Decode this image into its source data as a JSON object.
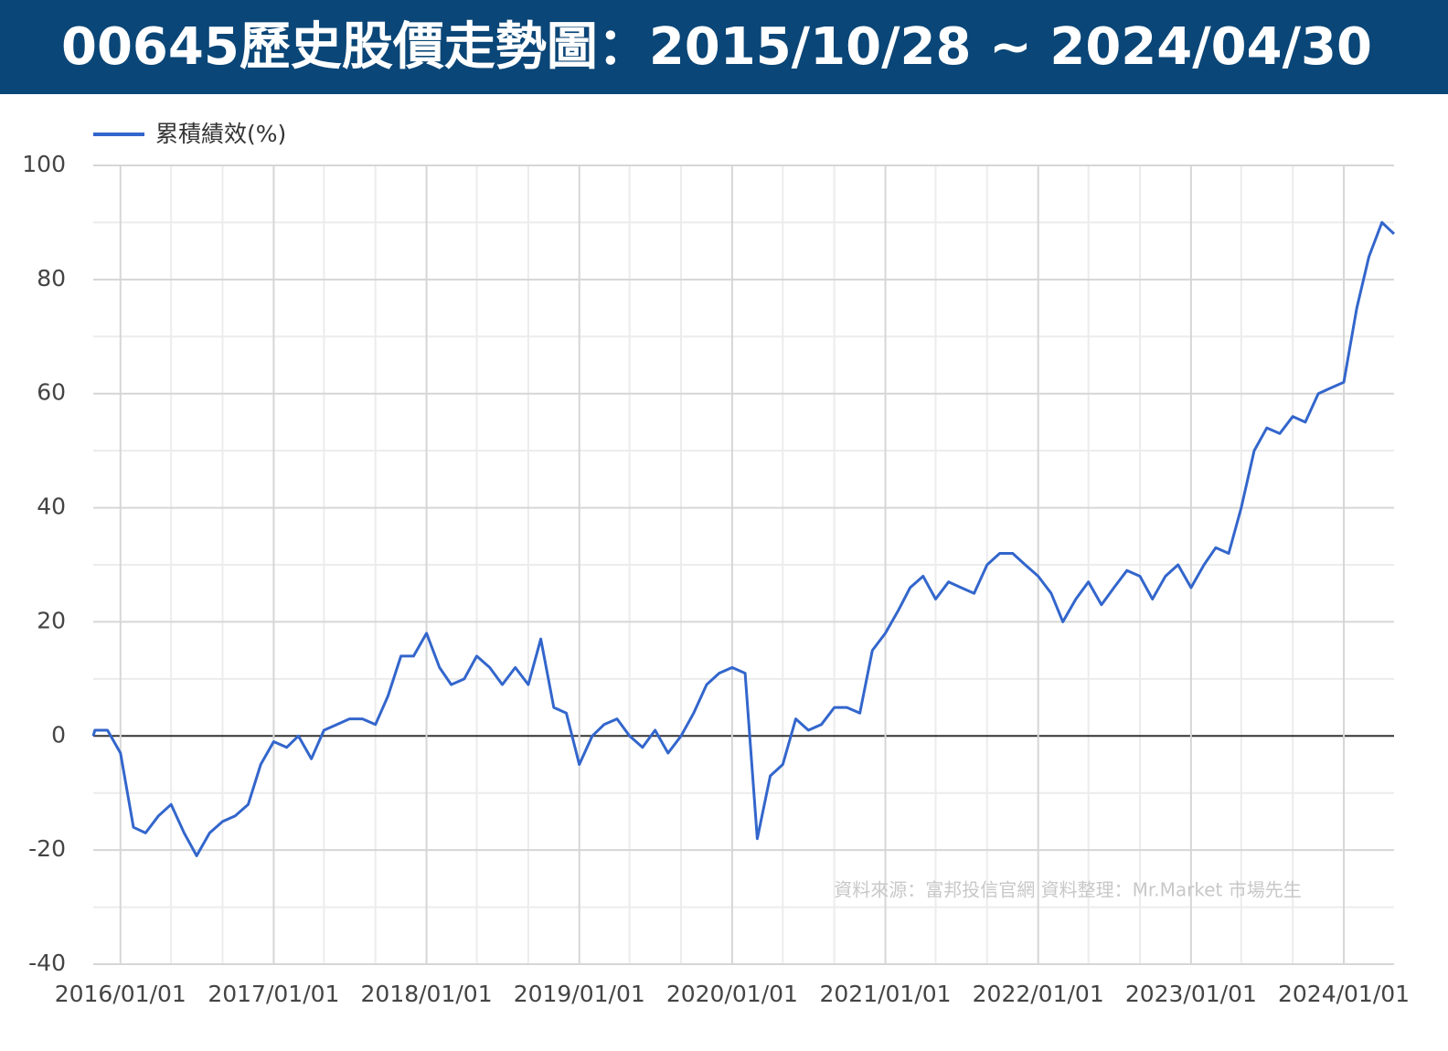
{
  "chart_data": {
    "type": "line",
    "title": "00645歷史股價走勢圖：2015/10/28 ~ 2024/04/30",
    "annotation": "資料來源：富邦投信官網  資料整理：Mr.Market 市場先生",
    "xlim": [
      "2015/10/28",
      "2024/04/30"
    ],
    "xticks": [
      "2016/01/01",
      "2017/01/01",
      "2018/01/01",
      "2019/01/01",
      "2020/01/01",
      "2021/01/01",
      "2022/01/01",
      "2023/01/01",
      "2024/01/01"
    ],
    "minor_xticks": [
      "2016/05/01",
      "2016/09/01",
      "2017/05/01",
      "2017/09/01",
      "2018/05/01",
      "2018/09/01",
      "2019/05/01",
      "2019/09/01",
      "2020/05/01",
      "2020/09/01",
      "2021/05/01",
      "2021/09/01",
      "2022/05/01",
      "2022/09/01",
      "2023/05/01",
      "2023/09/01"
    ],
    "ylim": [
      -40,
      100
    ],
    "yticks": [
      -40,
      -20,
      0,
      20,
      40,
      60,
      80,
      100
    ],
    "minor_yticks": [
      -30,
      -10,
      10,
      30,
      50,
      70,
      90
    ],
    "grid": true,
    "legend": "top-left",
    "x": [
      "2015/10/28",
      "2015/11/01",
      "2015/12/01",
      "2016/01/01",
      "2016/02/01",
      "2016/03/01",
      "2016/04/01",
      "2016/05/01",
      "2016/06/01",
      "2016/07/01",
      "2016/08/01",
      "2016/09/01",
      "2016/10/01",
      "2016/11/01",
      "2016/12/01",
      "2017/01/01",
      "2017/02/01",
      "2017/03/01",
      "2017/04/01",
      "2017/05/01",
      "2017/06/01",
      "2017/07/01",
      "2017/08/01",
      "2017/09/01",
      "2017/10/01",
      "2017/11/01",
      "2017/12/01",
      "2018/01/01",
      "2018/02/01",
      "2018/03/01",
      "2018/04/01",
      "2018/05/01",
      "2018/06/01",
      "2018/07/01",
      "2018/08/01",
      "2018/09/01",
      "2018/10/01",
      "2018/11/01",
      "2018/12/01",
      "2019/01/01",
      "2019/02/01",
      "2019/03/01",
      "2019/04/01",
      "2019/05/01",
      "2019/06/01",
      "2019/07/01",
      "2019/08/01",
      "2019/09/01",
      "2019/10/01",
      "2019/11/01",
      "2019/12/01",
      "2020/01/01",
      "2020/02/01",
      "2020/03/01",
      "2020/04/01",
      "2020/05/01",
      "2020/06/01",
      "2020/07/01",
      "2020/08/01",
      "2020/09/01",
      "2020/10/01",
      "2020/11/01",
      "2020/12/01",
      "2021/01/01",
      "2021/02/01",
      "2021/03/01",
      "2021/04/01",
      "2021/05/01",
      "2021/06/01",
      "2021/07/01",
      "2021/08/01",
      "2021/09/01",
      "2021/10/01",
      "2021/11/01",
      "2021/12/01",
      "2022/01/01",
      "2022/02/01",
      "2022/03/01",
      "2022/04/01",
      "2022/05/01",
      "2022/06/01",
      "2022/07/01",
      "2022/08/01",
      "2022/09/01",
      "2022/10/01",
      "2022/11/01",
      "2022/12/01",
      "2023/01/01",
      "2023/02/01",
      "2023/03/01",
      "2023/04/01",
      "2023/05/01",
      "2023/06/01",
      "2023/07/01",
      "2023/08/01",
      "2023/09/01",
      "2023/10/01",
      "2023/11/01",
      "2023/12/01",
      "2024/01/01",
      "2024/02/01",
      "2024/03/01",
      "2024/04/01",
      "2024/04/30"
    ],
    "series": [
      {
        "name": "累積績效(%)",
        "color": "#3366cc",
        "values": [
          0,
          1,
          1,
          -3,
          -16,
          -17,
          -14,
          -12,
          -17,
          -21,
          -17,
          -15,
          -14,
          -12,
          -5,
          -1,
          -2,
          0,
          -4,
          1,
          2,
          3,
          3,
          2,
          7,
          14,
          14,
          18,
          12,
          9,
          10,
          14,
          12,
          9,
          12,
          9,
          17,
          5,
          4,
          -5,
          0,
          2,
          3,
          0,
          -2,
          1,
          -3,
          0,
          4,
          9,
          11,
          12,
          11,
          -18,
          -7,
          -5,
          3,
          1,
          2,
          5,
          5,
          4,
          15,
          18,
          22,
          26,
          28,
          24,
          27,
          26,
          25,
          30,
          32,
          32,
          30,
          28,
          25,
          20,
          24,
          27,
          23,
          26,
          29,
          28,
          24,
          28,
          30,
          26,
          30,
          33,
          32,
          40,
          50,
          54,
          53,
          56,
          55,
          60,
          61,
          62,
          75,
          84,
          90,
          88
        ]
      }
    ]
  }
}
